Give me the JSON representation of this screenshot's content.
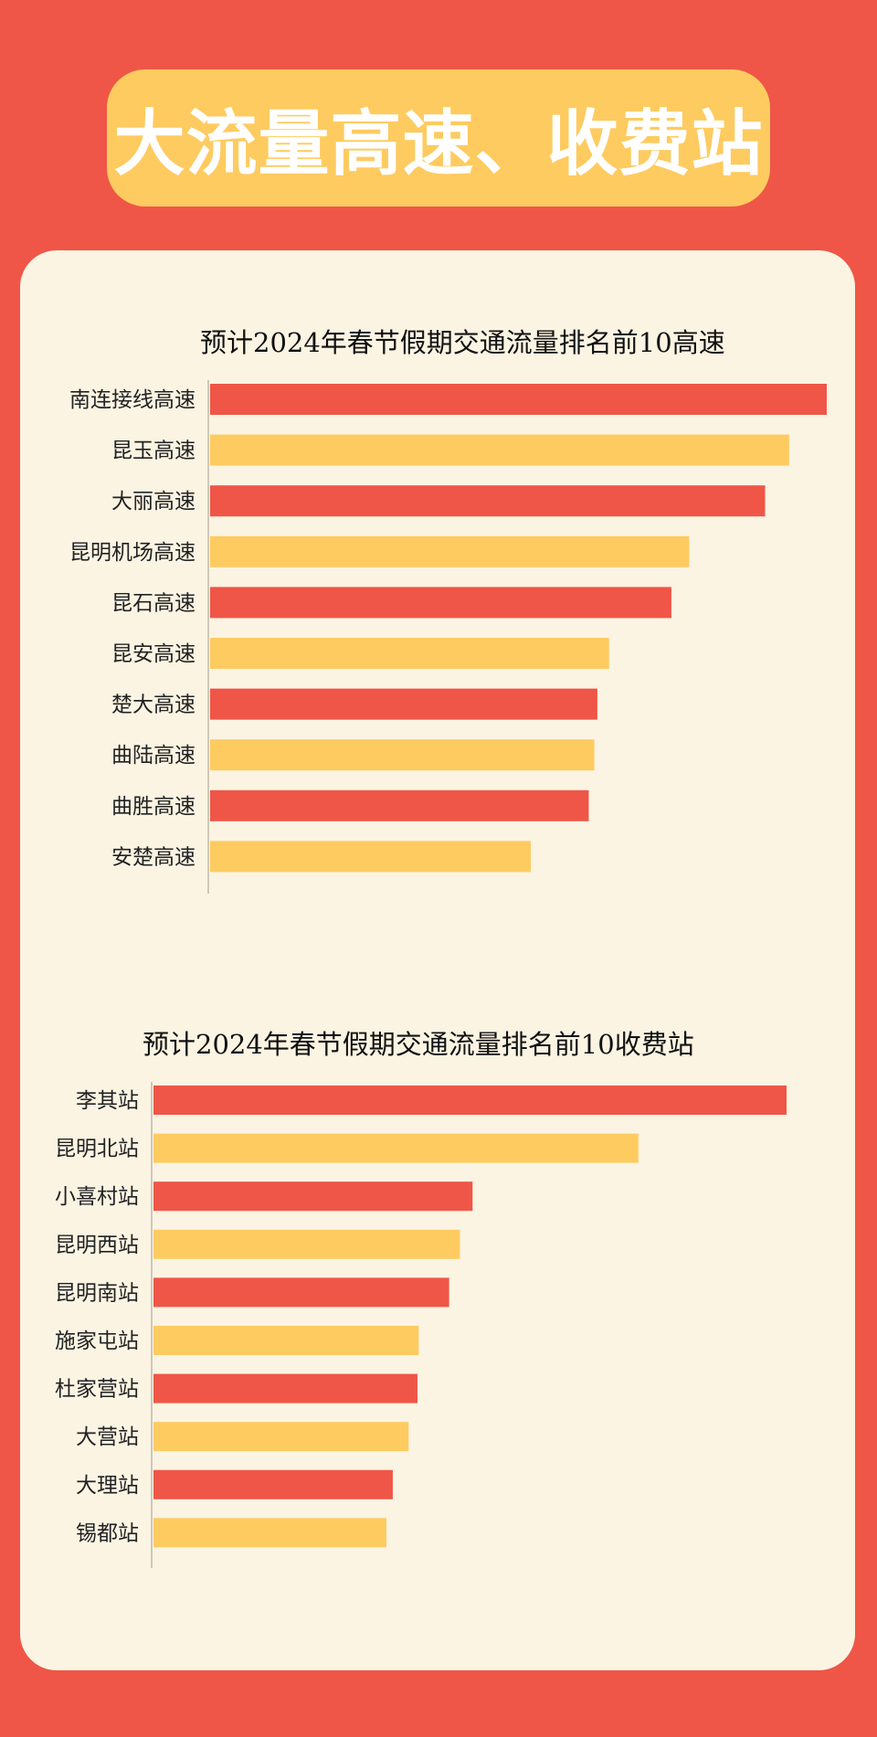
{
  "header": {
    "title": "大流量高速、收费站"
  },
  "colors": {
    "background": "#EF5647",
    "title_box": "#FECB60",
    "panel": "#FBF4E3",
    "bar_primary": "#EF5647",
    "bar_secondary": "#FECB60"
  },
  "chart_data": [
    {
      "type": "bar",
      "orientation": "horizontal",
      "title": "预计2024年春节假期交通流量排名前10高速",
      "categories": [
        "南连接线高速",
        "昆玉高速",
        "大丽高速",
        "昆明机场高速",
        "昆石高速",
        "昆安高速",
        "楚大高速",
        "曲陆高速",
        "曲胜高速",
        "安楚高速"
      ],
      "values": [
        100,
        93.9,
        90.0,
        77.7,
        74.8,
        64.7,
        62.8,
        62.3,
        61.4,
        52.0
      ],
      "value_unit": "relative (no axis printed)",
      "grid": false,
      "legend": "none",
      "bar_colors": [
        "#EF5647",
        "#FECB60"
      ]
    },
    {
      "type": "bar",
      "orientation": "horizontal",
      "title": "预计2024年春节假期交通流量排名前10收费站",
      "categories": [
        "李其站",
        "昆明北站",
        "小喜村站",
        "昆明西站",
        "昆明南站",
        "施家屯站",
        "杜家营站",
        "大营站",
        "大理站",
        "锡都站"
      ],
      "values": [
        100,
        76.6,
        50.4,
        48.4,
        46.7,
        41.9,
        41.7,
        40.3,
        37.8,
        36.8
      ],
      "value_unit": "relative (no axis printed)",
      "grid": false,
      "legend": "none",
      "bar_colors": [
        "#EF5647",
        "#FECB60"
      ]
    }
  ]
}
